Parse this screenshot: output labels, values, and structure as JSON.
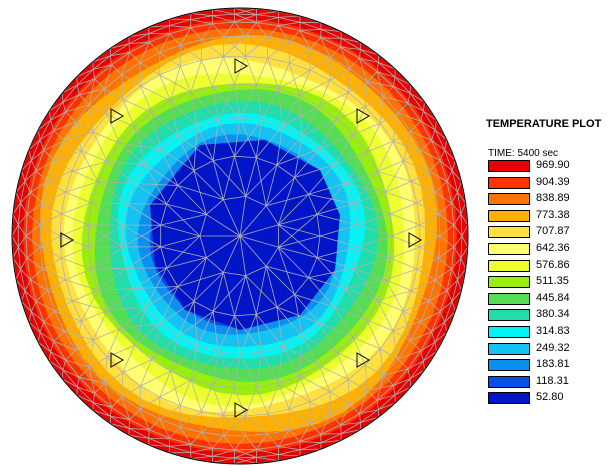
{
  "legend": {
    "title": "TEMPERATURE PLOT",
    "time": "TIME: 5400 sec",
    "entries": [
      {
        "value": "969.90",
        "color": "#e80000"
      },
      {
        "value": "904.39",
        "color": "#ff3300"
      },
      {
        "value": "838.89",
        "color": "#ff7400"
      },
      {
        "value": "773.38",
        "color": "#ffb000"
      },
      {
        "value": "707.87",
        "color": "#ffe040"
      },
      {
        "value": "642.36",
        "color": "#ffff70"
      },
      {
        "value": "576.86",
        "color": "#eeff30"
      },
      {
        "value": "511.35",
        "color": "#99ee10"
      },
      {
        "value": "445.84",
        "color": "#55dd55"
      },
      {
        "value": "380.34",
        "color": "#22ddaa"
      },
      {
        "value": "314.83",
        "color": "#00f4f4"
      },
      {
        "value": "249.32",
        "color": "#15c2f2"
      },
      {
        "value": "183.81",
        "color": "#0d8ff0"
      },
      {
        "value": "118.31",
        "color": "#0a4ee8"
      },
      {
        "value": "52.80",
        "color": "#0014c8"
      }
    ]
  },
  "plot": {
    "mesh_color": "#b0b0b0",
    "outline_color": "#000000",
    "thermocouple_markers": 8
  }
}
